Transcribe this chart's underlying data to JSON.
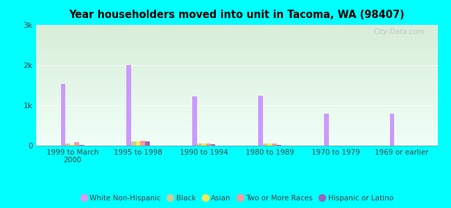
{
  "title": "Year householders moved into unit in Tacoma, WA (98407)",
  "categories": [
    "1999 to March\n2000",
    "1995 to 1998",
    "1990 to 1994",
    "1980 to 1989",
    "1970 to 1979",
    "1969 or earlier"
  ],
  "series": {
    "White Non-Hispanic": [
      1530,
      2000,
      1230,
      1250,
      790,
      790
    ],
    "Black": [
      55,
      95,
      50,
      50,
      8,
      8
    ],
    "Asian": [
      25,
      105,
      60,
      55,
      5,
      5
    ],
    "Two or More Races": [
      90,
      120,
      50,
      45,
      8,
      4
    ],
    "Hispanic or Latino": [
      25,
      105,
      28,
      18,
      4,
      4
    ]
  },
  "colors": {
    "White Non-Hispanic": "#cc99ff",
    "Black": "#cccc99",
    "Asian": "#eeee55",
    "Two or More Races": "#ff9999",
    "Hispanic or Latino": "#9966bb"
  },
  "ylim": [
    0,
    3000
  ],
  "yticks": [
    0,
    1000,
    2000,
    3000
  ],
  "ytick_labels": [
    "0",
    "1k",
    "2k",
    "3k"
  ],
  "background_color": "#00ffff",
  "plot_bg_top_color": "#d8eed8",
  "plot_bg_bottom_color": "#f0fff8",
  "watermark": "City-Data.com",
  "bar_width": 0.07,
  "legend_marker_colors": {
    "White Non-Hispanic": "#dd99ee",
    "Black": "#cccc99",
    "Asian": "#eeee55",
    "Two or More Races": "#ff9999",
    "Hispanic or Latino": "#9966bb"
  }
}
